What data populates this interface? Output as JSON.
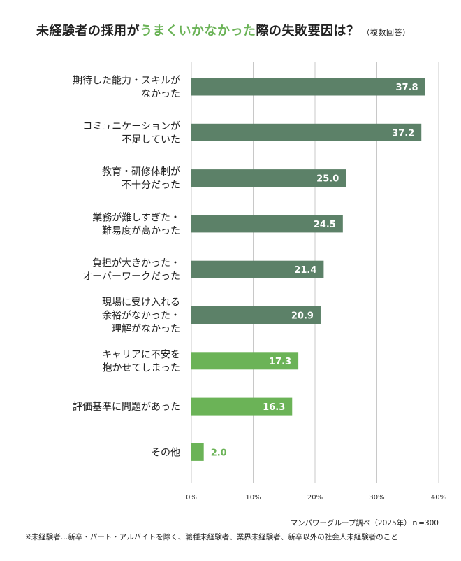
{
  "title": {
    "part1": "未経験者の採用が",
    "highlight": "うまくいかなかった",
    "part2": "際の失敗要因は？",
    "note": "（複数回答）"
  },
  "source": "マンパワーグループ調べ（2025年）ｎ=300",
  "footnote": "※未経験者…新卒・パート・アルバイトを除く、職種未経験者、業界未経験者、新卒以外の社会人未経験者のこと",
  "colors": {
    "dark_green": "#5c8168",
    "light_green": "#6bb357",
    "axis": "#c8c8c8",
    "label_inside": "#ffffff"
  },
  "chart_data": {
    "type": "bar",
    "orientation": "horizontal",
    "categories": [
      [
        "期待した能力・スキルが",
        "なかった"
      ],
      [
        "コミュニケーションが",
        "不足していた"
      ],
      [
        "教育・研修体制が",
        "不十分だった"
      ],
      [
        "業務が難しすぎた・",
        "難易度が高かった"
      ],
      [
        "負担が大きかった・",
        "オーバーワークだった"
      ],
      [
        "現場に受け入れる",
        "余裕がなかった・",
        "理解がなかった"
      ],
      [
        "キャリアに不安を",
        "抱かせてしまった"
      ],
      [
        "評価基準に問題があった"
      ],
      [
        "その他"
      ]
    ],
    "values": [
      37.8,
      37.2,
      25.0,
      24.5,
      21.4,
      20.9,
      17.3,
      16.3,
      2.0
    ],
    "value_labels": [
      "37.8",
      "37.2",
      "25.0",
      "24.5",
      "21.4",
      "20.9",
      "17.3",
      "16.3",
      "2.0"
    ],
    "bar_colors": [
      "#5c8168",
      "#5c8168",
      "#5c8168",
      "#5c8168",
      "#5c8168",
      "#5c8168",
      "#6bb357",
      "#6bb357",
      "#6bb357"
    ],
    "xlim": [
      0,
      40
    ],
    "xticks": [
      "0%",
      "10%",
      "20%",
      "30%",
      "40%"
    ],
    "grid": "vertical"
  }
}
